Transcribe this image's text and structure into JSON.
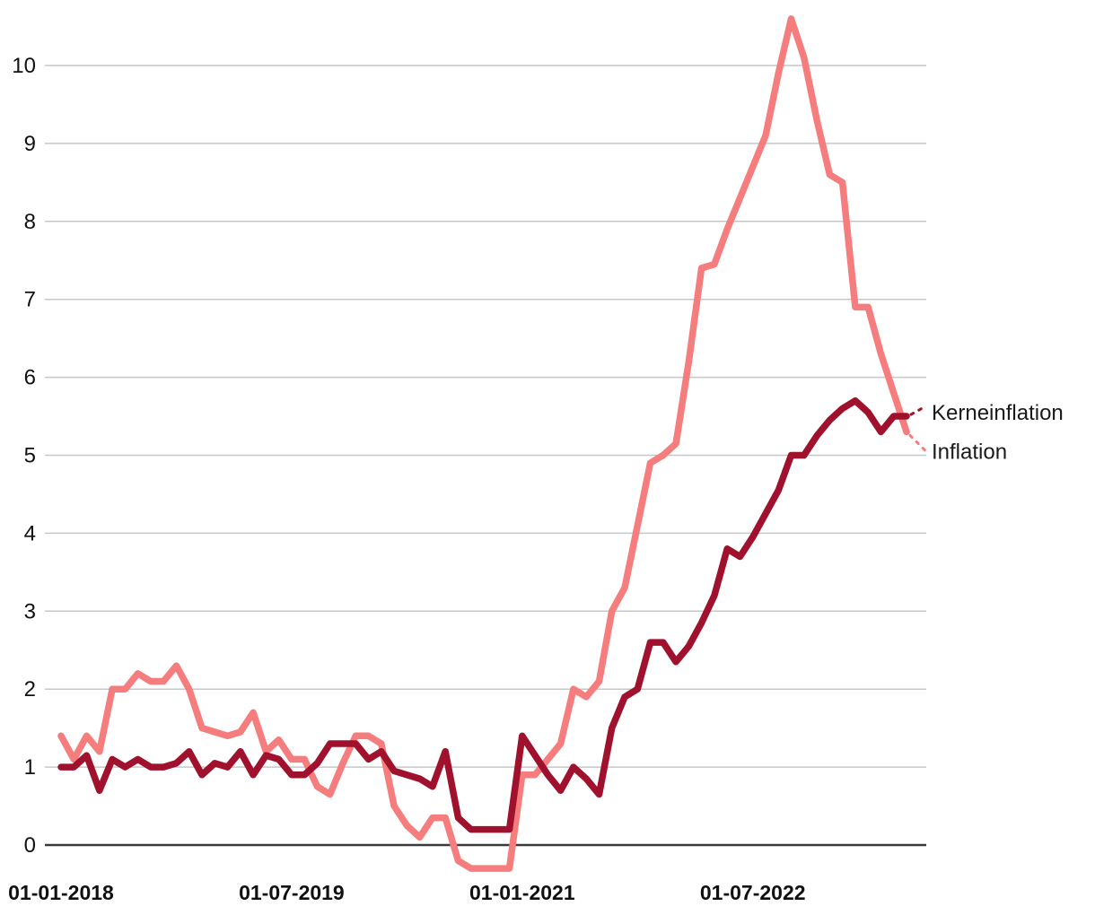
{
  "chart_data": {
    "type": "line",
    "title": "",
    "xlabel": "",
    "ylabel": "",
    "x_axis": {
      "start": "2018-01",
      "end": "2023-07",
      "frequency": "monthly",
      "tick_labels": [
        "01-01-2018",
        "01-07-2019",
        "01-01-2021",
        "01-07-2022"
      ],
      "tick_month_indices": [
        0,
        18,
        36,
        54
      ]
    },
    "y_axis": {
      "ticks": [
        0,
        1,
        2,
        3,
        4,
        5,
        6,
        7,
        8,
        9,
        10
      ],
      "range": [
        -0.45,
        10.75
      ],
      "grid": true
    },
    "legend_position": "end-of-line-labels-right",
    "series": [
      {
        "name": "Inflation",
        "color": "#f67d7d",
        "values": [
          1.4,
          1.1,
          1.4,
          1.2,
          2.0,
          2.0,
          2.2,
          2.1,
          2.1,
          2.3,
          2.0,
          1.5,
          1.45,
          1.4,
          1.45,
          1.7,
          1.2,
          1.35,
          1.1,
          1.1,
          0.75,
          0.65,
          1.05,
          1.4,
          1.4,
          1.3,
          0.5,
          0.25,
          0.1,
          0.35,
          0.35,
          -0.2,
          -0.3,
          -0.3,
          -0.3,
          -0.3,
          0.9,
          0.9,
          1.1,
          1.3,
          2.0,
          1.9,
          2.1,
          3.0,
          3.3,
          4.1,
          4.9,
          5.0,
          5.15,
          6.2,
          7.4,
          7.45,
          7.9,
          8.3,
          8.7,
          9.1,
          9.9,
          10.6,
          10.1,
          9.3,
          8.6,
          8.5,
          6.9,
          6.9,
          6.3,
          5.8,
          5.3
        ]
      },
      {
        "name": "Kerneinflation",
        "color": "#a0112d",
        "values": [
          1.0,
          1.0,
          1.15,
          0.7,
          1.1,
          1.0,
          1.1,
          1.0,
          1.0,
          1.05,
          1.2,
          0.9,
          1.05,
          1.0,
          1.2,
          0.9,
          1.15,
          1.1,
          0.9,
          0.9,
          1.05,
          1.3,
          1.3,
          1.3,
          1.1,
          1.2,
          0.95,
          0.9,
          0.85,
          0.75,
          1.2,
          0.35,
          0.2,
          0.2,
          0.2,
          0.2,
          1.4,
          1.15,
          0.9,
          0.7,
          1.0,
          0.85,
          0.65,
          1.5,
          1.9,
          2.0,
          2.6,
          2.6,
          2.35,
          2.55,
          2.85,
          3.2,
          3.8,
          3.7,
          3.95,
          4.25,
          4.55,
          5.0,
          5.0,
          5.25,
          5.45,
          5.6,
          5.7,
          5.55,
          5.3,
          5.5,
          5.5
        ]
      }
    ],
    "styles": {
      "grid_color": "#c7c7c7",
      "zero_line_color": "#3a3a3a",
      "text_color": "#111111",
      "background": "#ffffff"
    }
  }
}
